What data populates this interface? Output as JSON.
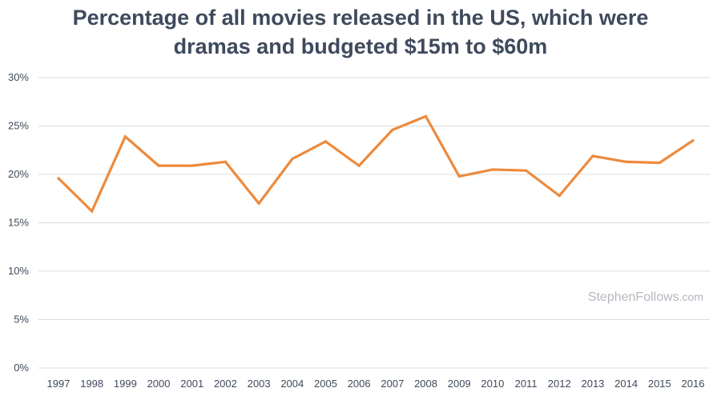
{
  "chart_data": {
    "type": "line",
    "title": "Percentage of all movies released in the US, which were dramas and budgeted $15m to $60m",
    "title_lines": [
      "Percentage of all movies released in the US, which were",
      "dramas and budgeted $15m to $60m"
    ],
    "xlabel": "",
    "ylabel": "",
    "categories": [
      "1997",
      "1998",
      "1999",
      "2000",
      "2001",
      "2002",
      "2003",
      "2004",
      "2005",
      "2006",
      "2007",
      "2008",
      "2009",
      "2010",
      "2011",
      "2012",
      "2013",
      "2014",
      "2015",
      "2016"
    ],
    "series": [
      {
        "name": "Dramas budgeted $15m to $60m",
        "values": [
          19.6,
          16.2,
          23.9,
          20.9,
          20.9,
          21.3,
          17.0,
          21.6,
          23.4,
          20.9,
          24.6,
          26.0,
          19.8,
          20.5,
          20.4,
          17.8,
          21.9,
          21.3,
          21.2,
          23.5
        ],
        "color": "#ed8a3c"
      }
    ],
    "ylim": [
      0,
      30
    ],
    "yticks": [
      0,
      5,
      10,
      15,
      20,
      25,
      30
    ],
    "ytick_labels": [
      "0%",
      "5%",
      "10%",
      "15%",
      "20%",
      "25%",
      "30%"
    ],
    "grid": true,
    "watermark": {
      "main": "StephenFollows",
      "suffix": ".com"
    }
  }
}
